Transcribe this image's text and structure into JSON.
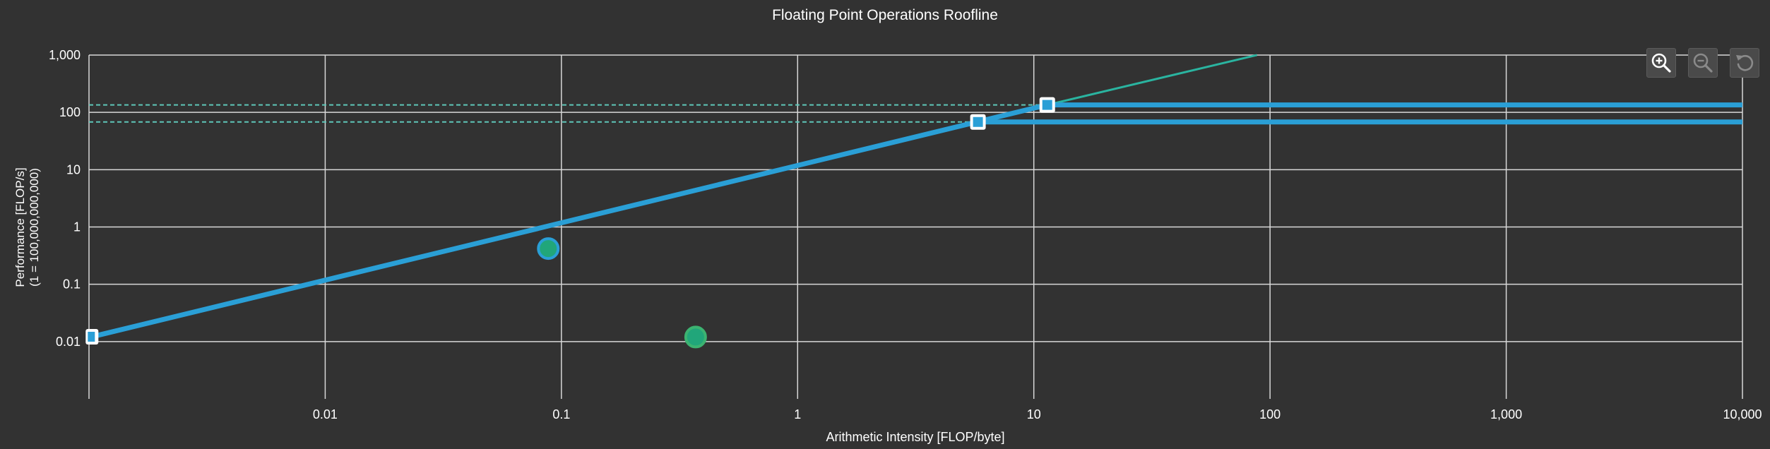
{
  "chart_data": {
    "type": "scatter",
    "title": "Floating Point Operations Roofline",
    "xlabel": "Arithmetic Intensity [FLOP/byte]",
    "ylabel": "Performance [FLOP/s]",
    "ylabel_sub": "(1 = 100,000,000,000)",
    "xscale": "log",
    "yscale": "log",
    "xlim": [
      0.001,
      10000
    ],
    "ylim": [
      0.001,
      1000
    ],
    "x_ticks": [
      {
        "value": 0.01,
        "label": "0.01"
      },
      {
        "value": 0.1,
        "label": "0.1"
      },
      {
        "value": 1,
        "label": "1"
      },
      {
        "value": 10,
        "label": "10"
      },
      {
        "value": 100,
        "label": "100"
      },
      {
        "value": 1000,
        "label": "1,000"
      },
      {
        "value": 10000,
        "label": "10,000"
      }
    ],
    "y_ticks": [
      {
        "value": 0.01,
        "label": "0.01"
      },
      {
        "value": 0.1,
        "label": "0.1"
      },
      {
        "value": 1,
        "label": "1"
      },
      {
        "value": 10,
        "label": "10"
      },
      {
        "value": 100,
        "label": "100"
      },
      {
        "value": 1000,
        "label": "1,000"
      }
    ],
    "grid": true,
    "roofs": {
      "memory_bandwidth_slope": 11.8,
      "compute_peaks": [
        135,
        68
      ],
      "ridge_points": [
        {
          "x": 11.4,
          "y": 135
        },
        {
          "x": 5.8,
          "y": 68
        }
      ],
      "secondary_line": {
        "x_from": 11.4,
        "y_from": 135,
        "x_to": 88,
        "y_to": 1000
      }
    },
    "series": [
      {
        "points": [
          {
            "x": 0.088,
            "y": 0.42
          }
        ],
        "color": "#21a67a",
        "outline": "#2a9fd6"
      },
      {
        "points": [
          {
            "x": 0.37,
            "y": 0.012
          }
        ],
        "color": "#21a67a",
        "outline": "#3cb371"
      }
    ],
    "colors": {
      "roof": "#2a9fd6",
      "secondary": "#2ab4a0",
      "dashed": "#5ec6b8",
      "grid": "#d8d8d8",
      "background": "#323232"
    }
  },
  "toolbar": {
    "zoom_in": "zoom-in-icon",
    "zoom_out": "zoom-out-icon",
    "reset": "reset-icon"
  }
}
